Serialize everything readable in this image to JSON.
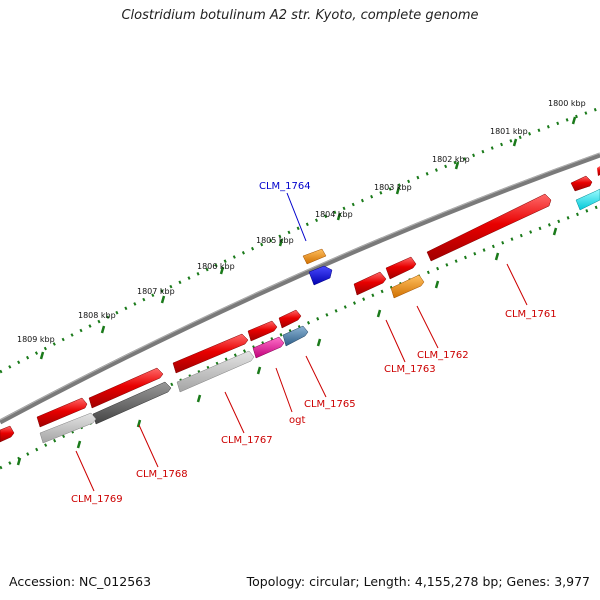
{
  "title": "Clostridium botulinum A2 str. Kyoto, complete genome",
  "accession_text": "Accession: NC_012563",
  "topology_text": "Topology: circular; Length: 4,155,278 bp; Genes: 3,977",
  "ruler_ticks": [
    "1800 kbp",
    "1801 kbp",
    "1802 kbp",
    "1803 kbp",
    "1804 kbp",
    "1805 kbp",
    "1806 kbp",
    "1807 kbp",
    "1808 kbp",
    "1809 kbp"
  ],
  "gene_labels": {
    "clm1764": "CLM_1764",
    "clm1761": "CLM_1761",
    "clm1762": "CLM_1762",
    "clm1763": "CLM_1763",
    "clm1765": "CLM_1765",
    "ogt": "ogt",
    "clm1767": "CLM_1767",
    "clm1768": "CLM_1768",
    "clm1769": "CLM_1769"
  },
  "colors": {
    "backbone": "#7a7a7a",
    "ruler": "#1a7a1a",
    "gene_red": "#e80000",
    "gene_orange": "#f08c00",
    "gene_blue": "#0000dd",
    "gene_cyan": "#00e0e8",
    "gene_magenta": "#e8109c",
    "gene_steel": "#4a7ea8",
    "gene_lightgray": "#b8b8b8",
    "gene_darkgray": "#666666",
    "label_red": "#cc0000",
    "label_blue": "#0000cc"
  }
}
